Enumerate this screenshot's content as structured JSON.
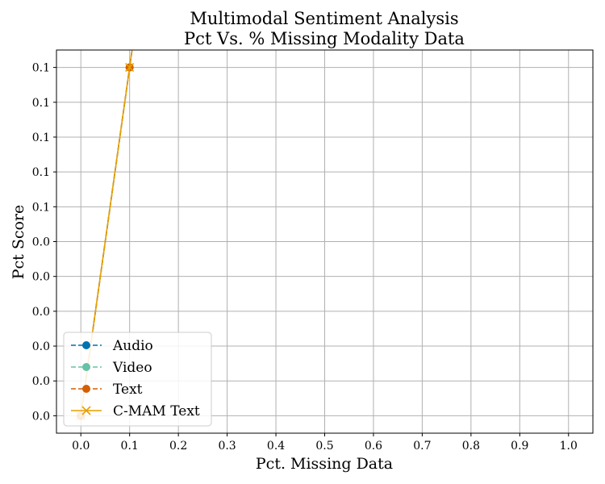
{
  "chart_data": {
    "type": "line",
    "title_line1": "Multimodal Sentiment Analysis",
    "title_line2": "Pct Vs. % Missing Modality Data",
    "xlabel": "Pct. Missing Data",
    "ylabel": "Pct Score",
    "xlim": [
      -0.05,
      1.05
    ],
    "ylim": [
      -0.005,
      0.105
    ],
    "x_ticks": [
      0.0,
      0.1,
      0.2,
      0.3,
      0.4,
      0.5,
      0.6,
      0.7,
      0.8,
      0.9,
      1.0
    ],
    "x_tick_labels": [
      "0.0",
      "0.1",
      "0.2",
      "0.3",
      "0.4",
      "0.5",
      "0.6",
      "0.7",
      "0.8",
      "0.9",
      "1.0"
    ],
    "y_ticks": [
      0.0,
      0.01,
      0.02,
      0.03,
      0.04,
      0.05,
      0.06,
      0.07,
      0.08,
      0.09,
      0.1
    ],
    "y_tick_labels": [
      "0.0",
      "0.0",
      "0.0",
      "0.0",
      "0.0",
      "0.0",
      "0.1",
      "0.1",
      "0.1",
      "0.1",
      "0.1"
    ],
    "grid": true,
    "legend_position": "lower-left",
    "series": [
      {
        "name": "Audio",
        "x": [
          0.0,
          0.1,
          0.2
        ],
        "y": [
          0.0,
          0.1,
          0.2
        ],
        "color": "#0072B2",
        "style": "dashed",
        "marker": "circle"
      },
      {
        "name": "Video",
        "x": [
          0.0,
          0.1,
          0.2
        ],
        "y": [
          0.0,
          0.1,
          0.2
        ],
        "color": "#66C2A5",
        "style": "dashed",
        "marker": "circle"
      },
      {
        "name": "Text",
        "x": [
          0.0,
          0.1,
          0.2
        ],
        "y": [
          0.0,
          0.1,
          0.2
        ],
        "color": "#D55E00",
        "style": "dashed",
        "marker": "circle"
      },
      {
        "name": "C-MAM Text",
        "x": [
          0.0,
          0.1,
          0.2
        ],
        "y": [
          0.0,
          0.1,
          0.2
        ],
        "color": "#E69F00",
        "style": "solid",
        "marker": "x"
      }
    ]
  }
}
